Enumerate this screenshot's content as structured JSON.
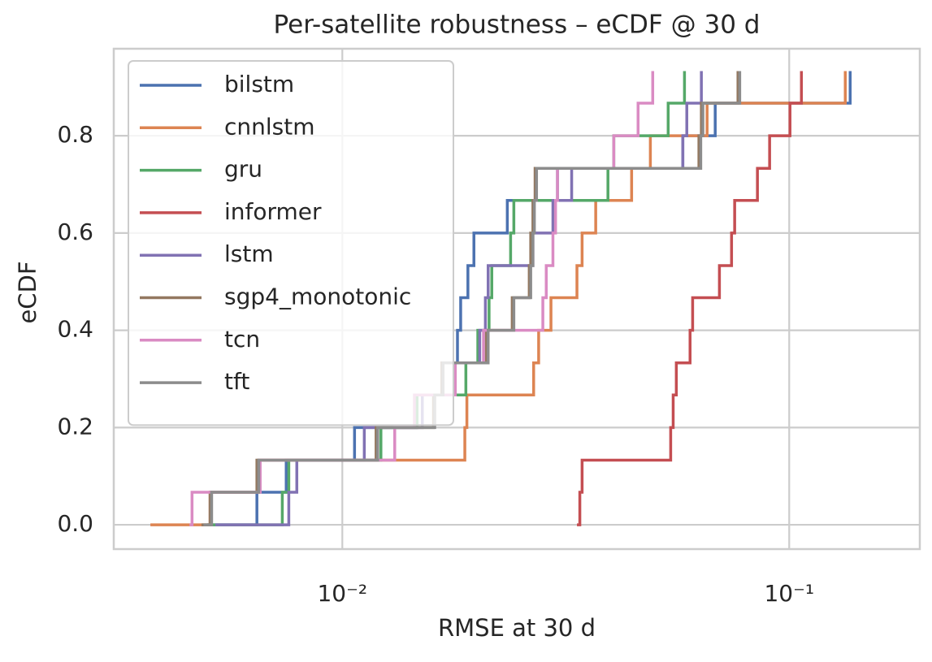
{
  "chart_data": {
    "type": "ecdf",
    "title": "Per-satellite robustness – eCDF @ 30 d",
    "x_label": "RMSE at 30 d",
    "y_label": "eCDF",
    "xscale": "log",
    "xlim": [
      0.00308,
      0.196
    ],
    "ylim": [
      -0.05,
      0.979
    ],
    "xticks": [
      {
        "value": 0.01,
        "label": "10⁻²"
      },
      {
        "value": 0.1,
        "label": "10⁻¹"
      }
    ],
    "yticks": [
      {
        "value": 0,
        "label": "0.0"
      },
      0.2,
      0.4,
      0.6,
      0.8
    ],
    "grid": true,
    "legend": "upper left",
    "series": [
      {
        "name": "bilstm",
        "color": "#4c72b0",
        "x": [
          0.00499,
          0.00644,
          0.00749,
          0.01065,
          0.0146,
          0.0168,
          0.0181,
          0.0184,
          0.0191,
          0.0197,
          0.0234,
          0.0303,
          0.0578,
          0.0683,
          0.1369
        ],
        "values": [
          0,
          0.067,
          0.133,
          0.2,
          0.267,
          0.333,
          0.4,
          0.467,
          0.533,
          0.6,
          0.667,
          0.733,
          0.8,
          0.867,
          0.933
        ]
      },
      {
        "name": "cnnlstm",
        "color": "#dd8452",
        "x": [
          0.00372,
          0.00506,
          0.0065,
          0.0188,
          0.019,
          0.0268,
          0.0275,
          0.0293,
          0.0335,
          0.0344,
          0.0369,
          0.0444,
          0.0489,
          0.0655,
          0.1335
        ],
        "values": [
          0,
          0.067,
          0.133,
          0.2,
          0.267,
          0.333,
          0.4,
          0.467,
          0.533,
          0.6,
          0.667,
          0.733,
          0.8,
          0.867,
          0.933
        ]
      },
      {
        "name": "gru",
        "color": "#55a868",
        "x": [
          0.00499,
          0.00734,
          0.00759,
          0.0122,
          0.0147,
          0.0189,
          0.0201,
          0.0213,
          0.0216,
          0.0238,
          0.0242,
          0.0393,
          0.0405,
          0.0536,
          0.0583
        ],
        "values": [
          0,
          0.067,
          0.133,
          0.2,
          0.267,
          0.333,
          0.4,
          0.467,
          0.533,
          0.6,
          0.667,
          0.733,
          0.8,
          0.867,
          0.933
        ]
      },
      {
        "name": "informer",
        "color": "#c44e52",
        "x": [
          0.0335,
          0.034,
          0.0344,
          0.0543,
          0.055,
          0.0559,
          0.06,
          0.0608,
          0.0698,
          0.0743,
          0.0755,
          0.0849,
          0.0904,
          0.1004,
          0.1065
        ],
        "values": [
          0,
          0.067,
          0.133,
          0.2,
          0.267,
          0.333,
          0.4,
          0.467,
          0.533,
          0.6,
          0.667,
          0.733,
          0.8,
          0.867,
          0.933
        ]
      },
      {
        "name": "lstm",
        "color": "#8172b3",
        "x": [
          0.0052,
          0.00759,
          0.00791,
          0.0112,
          0.0151,
          0.0178,
          0.0203,
          0.0209,
          0.0212,
          0.0267,
          0.0296,
          0.0326,
          0.0578,
          0.059,
          0.0636
        ],
        "values": [
          0,
          0.067,
          0.133,
          0.2,
          0.267,
          0.333,
          0.4,
          0.467,
          0.533,
          0.6,
          0.667,
          0.733,
          0.8,
          0.867,
          0.933
        ]
      },
      {
        "name": "sgp4_monotonic",
        "color": "#937860",
        "x": [
          0.00484,
          0.00506,
          0.00644,
          0.0119,
          0.016,
          0.0167,
          0.021,
          0.024,
          0.0262,
          0.0264,
          0.0267,
          0.027,
          0.0628,
          0.0636,
          0.0768
        ],
        "values": [
          0,
          0.067,
          0.133,
          0.2,
          0.267,
          0.333,
          0.4,
          0.467,
          0.533,
          0.6,
          0.667,
          0.733,
          0.8,
          0.867,
          0.933
        ]
      },
      {
        "name": "tcn",
        "color": "#da8bc3",
        "x": [
          0.00455,
          0.00461,
          0.00655,
          0.0131,
          0.0145,
          0.0179,
          0.0207,
          0.0281,
          0.0286,
          0.0296,
          0.03,
          0.0303,
          0.0405,
          0.0459,
          0.0495
        ],
        "values": [
          0,
          0.067,
          0.133,
          0.2,
          0.267,
          0.333,
          0.4,
          0.467,
          0.533,
          0.6,
          0.667,
          0.733,
          0.8,
          0.867,
          0.933
        ]
      },
      {
        "name": "tft",
        "color": "#8c8c8c",
        "x": [
          0.00489,
          0.0051,
          0.0065,
          0.012,
          0.0161,
          0.0168,
          0.0212,
          0.0242,
          0.0264,
          0.0267,
          0.0269,
          0.0272,
          0.0634,
          0.0641,
          0.0775
        ],
        "values": [
          0,
          0.067,
          0.133,
          0.2,
          0.267,
          0.333,
          0.4,
          0.467,
          0.533,
          0.6,
          0.667,
          0.733,
          0.8,
          0.867,
          0.933
        ]
      }
    ]
  }
}
